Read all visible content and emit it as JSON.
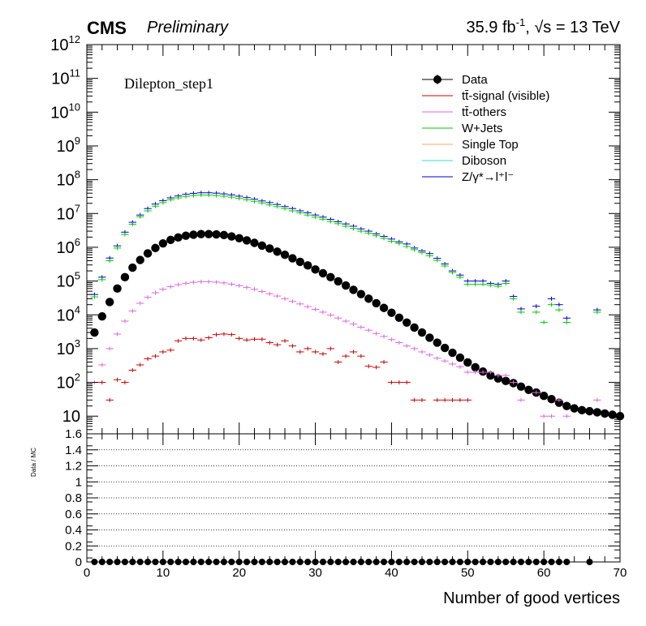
{
  "header": {
    "experiment": "CMS",
    "status": "Preliminary",
    "lumi_prefix": "35.9 fb",
    "lumi_exp": "-1",
    "energy": ", √s = 13 TeV"
  },
  "selection_label": "Dilepton_step1",
  "colors": {
    "data": "#000000",
    "ttbar_signal": "#cc0000",
    "ttbar_others": "#e066e0",
    "wjets": "#00cc00",
    "single_top": "#f0a868",
    "diboson": "#33ddcc",
    "zgamma": "#0000cc"
  },
  "legend": [
    {
      "key": "data",
      "label": "Data",
      "style": "marker"
    },
    {
      "key": "ttbar_signal",
      "label": "tt̄-signal (visible)",
      "style": "line"
    },
    {
      "key": "ttbar_others",
      "label": "tt̄-others",
      "style": "line"
    },
    {
      "key": "wjets",
      "label": "W+Jets",
      "style": "line"
    },
    {
      "key": "single_top",
      "label": "Single Top",
      "style": "line"
    },
    {
      "key": "diboson",
      "label": "Diboson",
      "style": "line"
    },
    {
      "key": "zgamma",
      "label": "Z/γ*→l⁺l⁻",
      "style": "line"
    }
  ],
  "chart_data": [
    {
      "type": "scatter",
      "panel": "main",
      "xlabel": "",
      "ylabel": "",
      "xlim": [
        0,
        70
      ],
      "ylim": [
        3,
        1000000000000
      ],
      "log_y": true,
      "grid": false,
      "y_ticks": [
        {
          "mant": "10",
          "exp": "12",
          "value": 1000000000000.0
        },
        {
          "mant": "10",
          "exp": "11",
          "value": 100000000000.0
        },
        {
          "mant": "10",
          "exp": "10",
          "value": 10000000000.0
        },
        {
          "mant": "10",
          "exp": "9",
          "value": 1000000000.0
        },
        {
          "mant": "10",
          "exp": "8",
          "value": 100000000.0
        },
        {
          "mant": "10",
          "exp": "7",
          "value": 10000000.0
        },
        {
          "mant": "10",
          "exp": "6",
          "value": 1000000.0
        },
        {
          "mant": "10",
          "exp": "5",
          "value": 100000.0
        },
        {
          "mant": "10",
          "exp": "4",
          "value": 10000.0
        },
        {
          "mant": "10",
          "exp": "3",
          "value": 1000.0
        },
        {
          "mant": "10",
          "exp": "2",
          "value": 100.0
        },
        {
          "mant": "10",
          "exp": "",
          "value": 10
        }
      ],
      "legend_position": "top-right",
      "series": [
        {
          "name": "Data",
          "key": "data",
          "style": "marker",
          "x": [
            1,
            2,
            3,
            4,
            5,
            6,
            7,
            8,
            9,
            10,
            11,
            12,
            13,
            14,
            15,
            16,
            17,
            18,
            19,
            20,
            21,
            22,
            23,
            24,
            25,
            26,
            27,
            28,
            29,
            30,
            31,
            32,
            33,
            34,
            35,
            36,
            37,
            38,
            39,
            40,
            41,
            42,
            43,
            44,
            45,
            46,
            47,
            48,
            49,
            50,
            51,
            52,
            53,
            54,
            55,
            56,
            57,
            58,
            59,
            60,
            61,
            62,
            63,
            64,
            65,
            66,
            67,
            68,
            69,
            70
          ],
          "y": [
            3000,
            9000,
            24000,
            60000,
            130000,
            250000,
            420000,
            660000,
            950000,
            1300000,
            1650000,
            1950000,
            2200000,
            2350000,
            2450000,
            2450000,
            2400000,
            2300000,
            2100000,
            1850000,
            1600000,
            1350000,
            1120000,
            920000,
            740000,
            600000,
            470000,
            370000,
            290000,
            220000,
            170000,
            130000,
            98000,
            74000,
            55000,
            41000,
            30000,
            22000,
            16000,
            11500,
            8200,
            5900,
            4200,
            3000,
            2100,
            1500,
            1050,
            750,
            540,
            390,
            280,
            210,
            160,
            130,
            110,
            95,
            75,
            60,
            50,
            40,
            32,
            25,
            20,
            17,
            15,
            14,
            13,
            12,
            11,
            10
          ]
        },
        {
          "name": "Z/γ*→l⁺l⁻",
          "key": "zgamma",
          "style": "hline",
          "x": [
            1,
            2,
            3,
            4,
            5,
            6,
            7,
            8,
            9,
            10,
            11,
            12,
            13,
            14,
            15,
            16,
            17,
            18,
            19,
            20,
            21,
            22,
            23,
            24,
            25,
            26,
            27,
            28,
            29,
            30,
            31,
            32,
            33,
            34,
            35,
            36,
            37,
            38,
            39,
            40,
            41,
            42,
            43,
            44,
            45,
            46,
            47,
            48,
            49,
            50,
            51,
            52,
            53,
            54,
            55,
            56,
            57,
            58,
            59,
            60,
            61,
            62,
            63,
            64,
            65,
            66,
            67,
            68,
            69,
            70
          ],
          "y": [
            40000,
            130000,
            480000,
            1100000,
            2800000,
            5500000,
            9000000,
            14000000,
            19000000,
            24000000,
            29000000,
            33000000,
            37000000,
            39500000,
            41000000,
            41000000,
            40000000,
            38000000,
            35500000,
            32500000,
            29500000,
            26500000,
            23500000,
            21000000,
            18500000,
            16000000,
            14000000,
            12000000,
            10500000,
            9000000,
            7800000,
            6700000,
            5700000,
            4900000,
            4200000,
            3500000,
            3000000,
            2500000,
            2100000,
            1750000,
            1450000,
            1250000,
            950000,
            780000,
            650000,
            470000,
            320000,
            200000,
            150000,
            100000,
            100000,
            100000,
            85000,
            80000,
            100000,
            35000,
            15000,
            0,
            18000,
            0,
            30000,
            20000,
            8000,
            0,
            0,
            0,
            14000,
            0,
            0,
            0
          ]
        },
        {
          "name": "W+Jets",
          "key": "wjets",
          "style": "hline",
          "x": [
            1,
            2,
            3,
            4,
            5,
            6,
            7,
            8,
            9,
            10,
            11,
            12,
            13,
            14,
            15,
            16,
            17,
            18,
            19,
            20,
            21,
            22,
            23,
            24,
            25,
            26,
            27,
            28,
            29,
            30,
            31,
            32,
            33,
            34,
            35,
            36,
            37,
            38,
            39,
            40,
            41,
            42,
            43,
            44,
            45,
            46,
            47,
            48,
            49,
            50,
            51,
            52,
            53,
            54,
            55,
            56,
            57,
            58,
            59,
            60,
            61,
            62,
            63,
            64,
            65,
            66,
            67,
            68,
            69,
            70
          ],
          "y": [
            34000,
            110000,
            400000,
            950000,
            2400000,
            4800000,
            8000000,
            12000000,
            16500000,
            21000000,
            25500000,
            29000000,
            32000000,
            34000000,
            35000000,
            35000000,
            34000000,
            32500000,
            30500000,
            28000000,
            25500000,
            23000000,
            20500000,
            18000000,
            16000000,
            14000000,
            12000000,
            10500000,
            9000000,
            7800000,
            6800000,
            5800000,
            5000000,
            4200000,
            3600000,
            3000000,
            2600000,
            2200000,
            1850000,
            1500000,
            1300000,
            1050000,
            850000,
            700000,
            560000,
            410000,
            280000,
            180000,
            130000,
            80000,
            80000,
            80000,
            75000,
            70000,
            85000,
            30000,
            12000,
            0,
            12000,
            6000,
            20000,
            14000,
            6000,
            0,
            0,
            0,
            12000,
            0,
            0,
            0
          ]
        },
        {
          "name": "tt̄-others",
          "key": "ttbar_others",
          "style": "hline",
          "x": [
            1,
            2,
            3,
            4,
            5,
            6,
            7,
            8,
            9,
            10,
            11,
            12,
            13,
            14,
            15,
            16,
            17,
            18,
            19,
            20,
            21,
            22,
            23,
            24,
            25,
            26,
            27,
            28,
            29,
            30,
            31,
            32,
            33,
            34,
            35,
            36,
            37,
            38,
            39,
            40,
            41,
            42,
            43,
            44,
            45,
            46,
            47,
            48,
            49,
            50,
            51,
            52,
            53,
            54,
            55,
            56,
            57,
            58,
            59,
            60,
            61,
            62,
            63,
            64,
            65,
            66,
            67,
            68,
            69,
            70
          ],
          "y": [
            100,
            330,
            1000,
            2700,
            6500,
            13000,
            22000,
            33000,
            45000,
            57000,
            68000,
            78000,
            86000,
            92000,
            96000,
            96000,
            93000,
            88000,
            81000,
            73000,
            65000,
            57000,
            49000,
            42000,
            36000,
            30000,
            25000,
            21000,
            17500,
            14500,
            12000,
            9800,
            8000,
            6500,
            5300,
            4300,
            3500,
            2800,
            2300,
            1850,
            1500,
            1200,
            1000,
            800,
            650,
            520,
            430,
            350,
            290,
            200,
            200,
            200,
            200,
            160,
            160,
            100,
            30,
            0,
            50,
            10,
            10,
            30,
            10,
            0,
            0,
            0,
            30,
            0,
            0,
            0
          ]
        },
        {
          "name": "tt̄-signal (visible)",
          "key": "ttbar_signal",
          "style": "hline",
          "x": [
            2,
            3,
            4,
            5,
            6,
            7,
            8,
            9,
            10,
            11,
            12,
            13,
            14,
            15,
            16,
            17,
            18,
            19,
            20,
            21,
            22,
            23,
            24,
            25,
            26,
            27,
            28,
            29,
            30,
            31,
            32,
            33,
            34,
            35,
            36,
            37,
            38,
            39,
            40,
            41,
            42,
            43,
            44,
            45,
            46,
            47,
            48,
            49,
            50
          ],
          "y": [
            100,
            30,
            120,
            100,
            230,
            330,
            500,
            600,
            800,
            900,
            1700,
            2000,
            2000,
            1800,
            2100,
            2600,
            2700,
            2600,
            2000,
            1800,
            1900,
            1900,
            1500,
            1300,
            1700,
            1200,
            800,
            1000,
            800,
            700,
            1000,
            400,
            600,
            800,
            600,
            300,
            280,
            400,
            100,
            100,
            100,
            30,
            30,
            0,
            30,
            30,
            30,
            30,
            30
          ]
        }
      ]
    },
    {
      "type": "scatter",
      "panel": "ratio",
      "xlabel": "Number of good vertices",
      "ylabel": "Data / MC",
      "xlim": [
        0,
        70
      ],
      "ylim": [
        0,
        1.6
      ],
      "grid": true,
      "grid_values": [
        0.2,
        0.4,
        0.6,
        0.8,
        1,
        1.2,
        1.4
      ],
      "y_tick_labels": [
        "0",
        "0.2",
        "0.4",
        "0.6",
        "0.8",
        "1",
        "1.2",
        "1.4",
        "1.6"
      ],
      "y_tick_values": [
        0,
        0.2,
        0.4,
        0.6,
        0.8,
        1,
        1.2,
        1.4,
        1.6
      ],
      "x_tick_labels": [
        "0",
        "10",
        "20",
        "30",
        "40",
        "50",
        "60",
        "70"
      ],
      "x_tick_values": [
        0,
        10,
        20,
        30,
        40,
        50,
        60,
        70
      ],
      "series": [
        {
          "name": "",
          "key": "data",
          "style": "marker",
          "x": [
            1,
            2,
            3,
            4,
            5,
            6,
            7,
            8,
            9,
            10,
            11,
            12,
            13,
            14,
            15,
            16,
            17,
            18,
            19,
            20,
            21,
            22,
            23,
            24,
            25,
            26,
            27,
            28,
            29,
            30,
            31,
            32,
            33,
            34,
            35,
            36,
            37,
            38,
            39,
            40,
            41,
            42,
            43,
            44,
            45,
            46,
            47,
            48,
            49,
            50,
            51,
            52,
            53,
            54,
            55,
            56,
            57,
            58,
            59,
            60,
            61,
            62,
            63,
            66
          ],
          "y": [
            0,
            0,
            0,
            0,
            0,
            0,
            0,
            0,
            0,
            0,
            0,
            0,
            0,
            0,
            0,
            0,
            0,
            0,
            0,
            0,
            0,
            0,
            0,
            0,
            0,
            0,
            0,
            0,
            0,
            0,
            0,
            0,
            0,
            0,
            0,
            0,
            0,
            0,
            0,
            0,
            0,
            0,
            0,
            0,
            0,
            0,
            0,
            0,
            0,
            0,
            0,
            0,
            0,
            0,
            0,
            0,
            0,
            0,
            0,
            0,
            0,
            0,
            0,
            0
          ]
        }
      ]
    }
  ]
}
